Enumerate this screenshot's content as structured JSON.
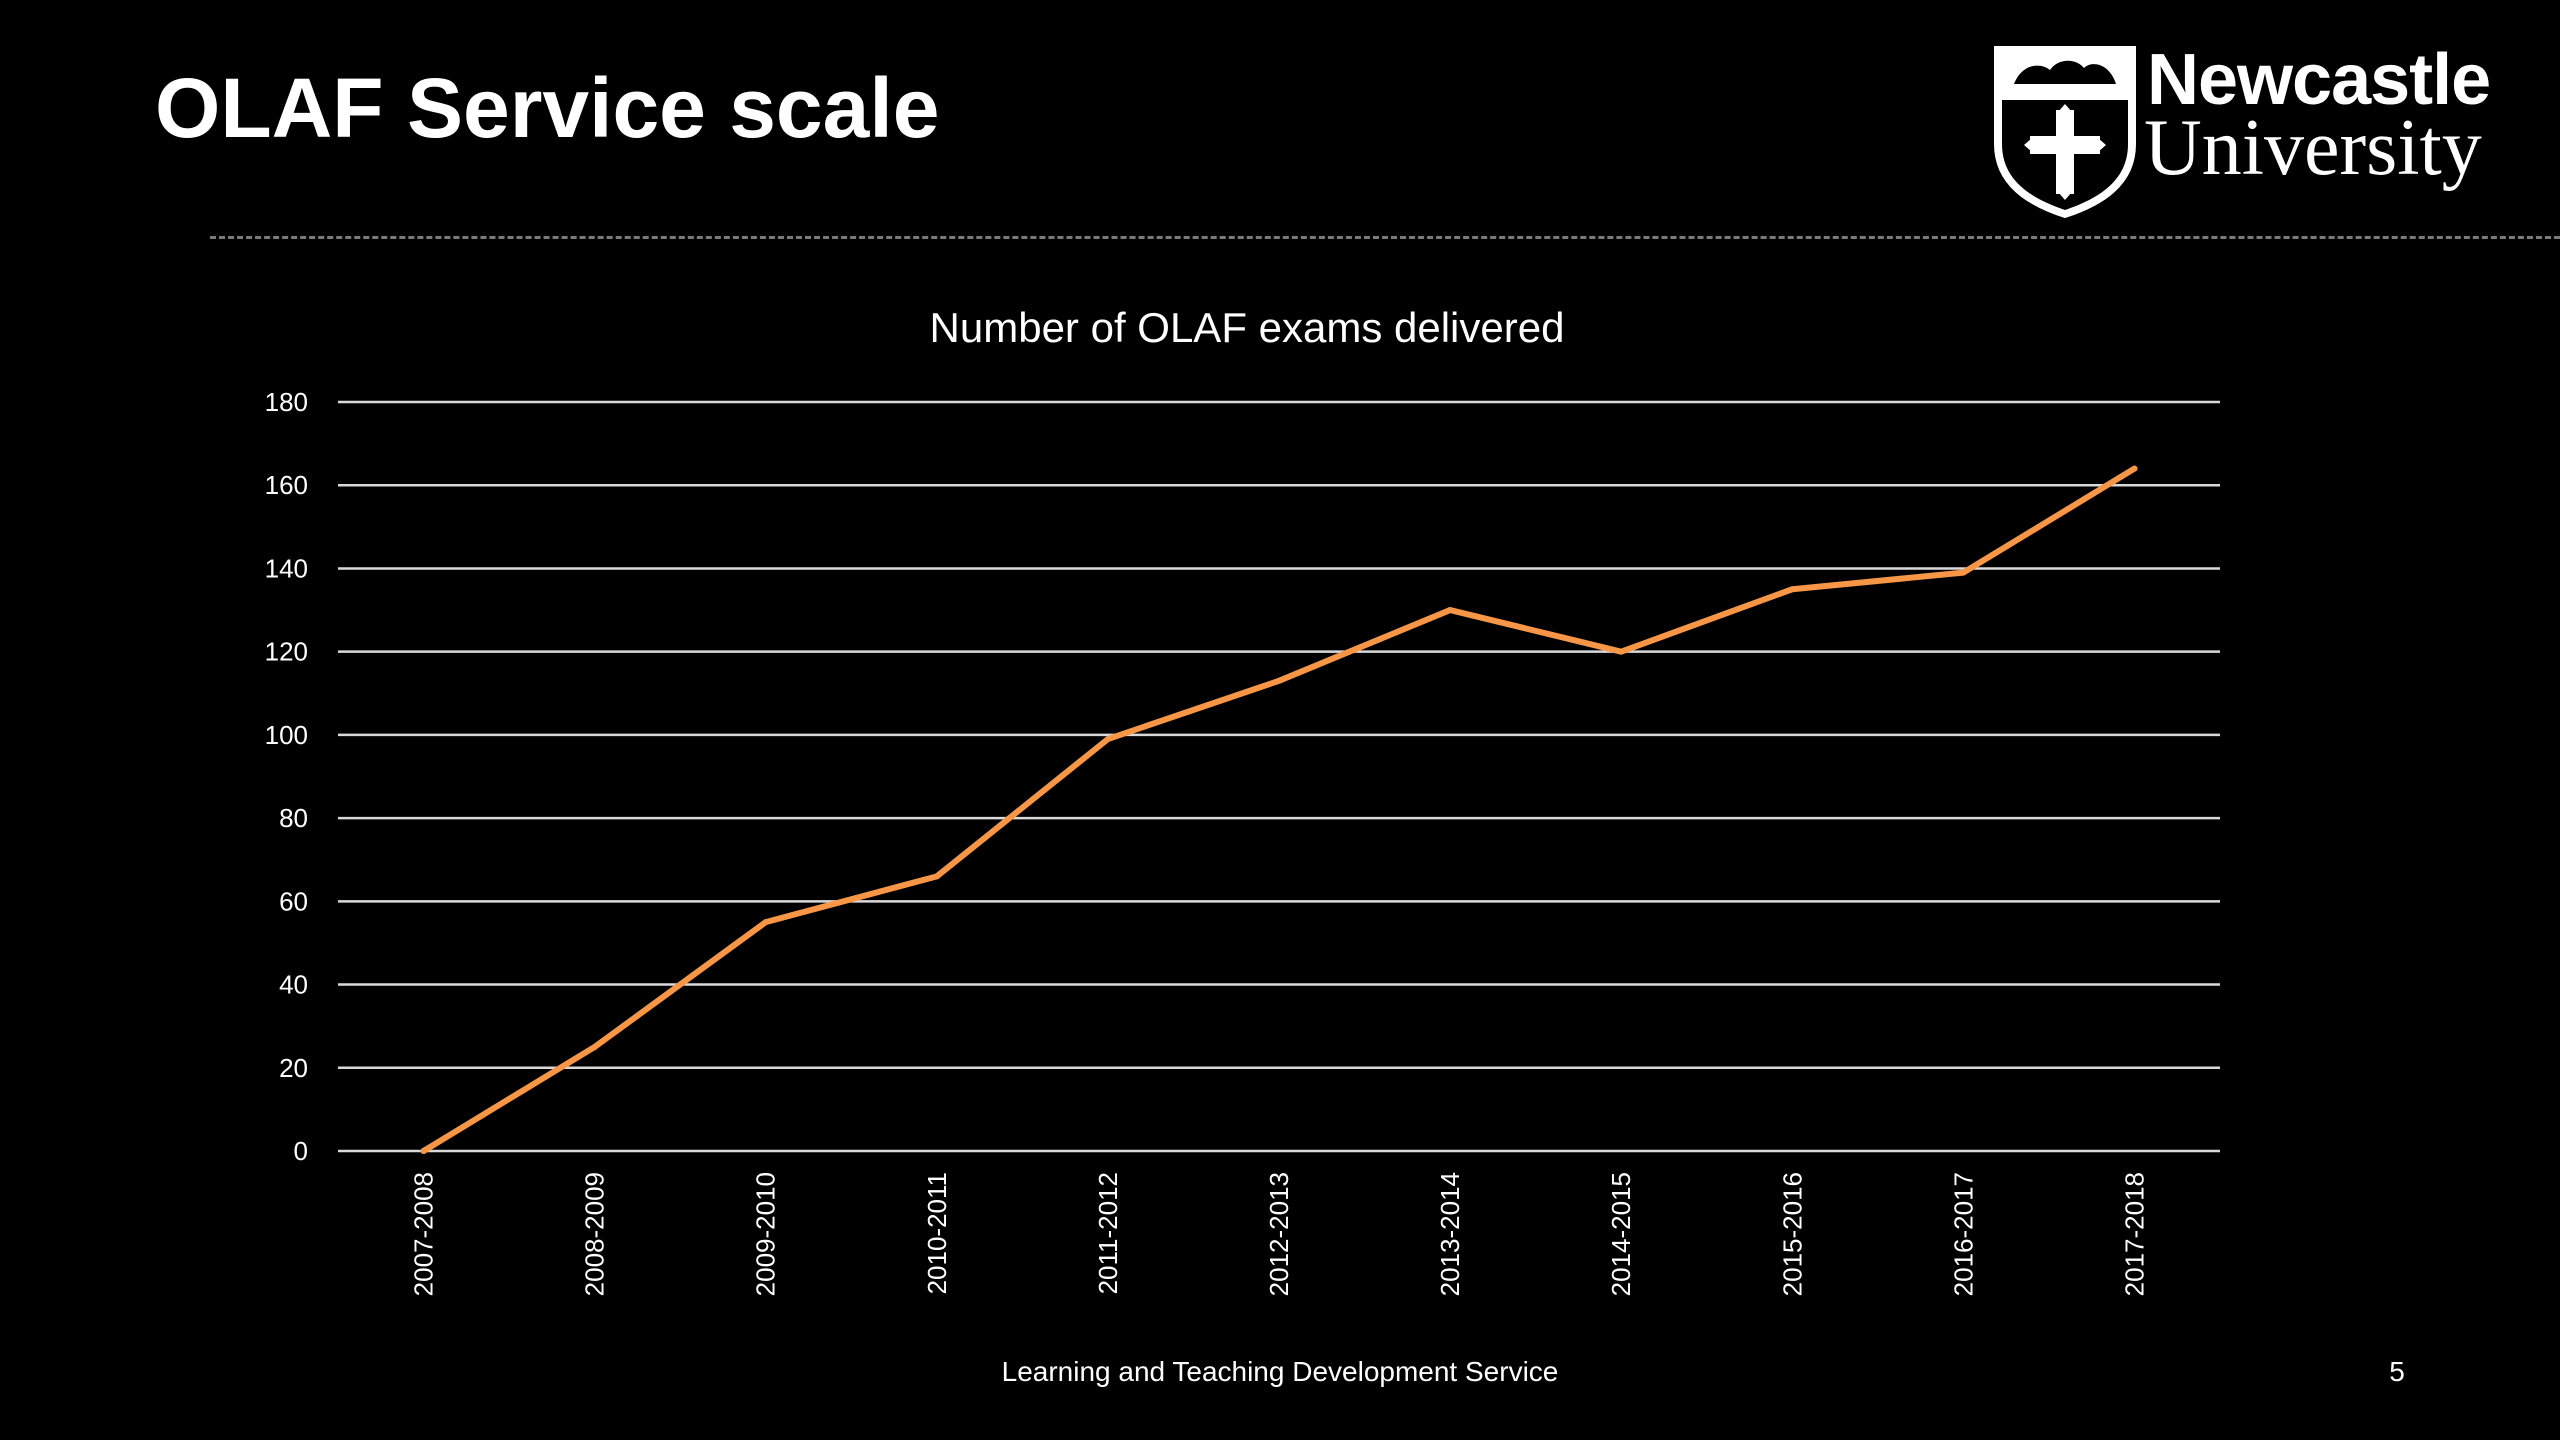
{
  "slide": {
    "title": "OLAF Service scale",
    "footer": "Learning and Teaching Development Service",
    "page_number": "5"
  },
  "logo": {
    "line1": "Newcastle",
    "line2": "University",
    "icon": "university-crest-icon"
  },
  "colors": {
    "background": "#000000",
    "text": "#ffffff",
    "gridline": "#d9d9d9",
    "series": "#f79646"
  },
  "chart_data": {
    "type": "line",
    "title": "Number of OLAF exams delivered",
    "xlabel": "",
    "ylabel": "",
    "categories": [
      "2007-2008",
      "2008-2009",
      "2009-2010",
      "2010-2011",
      "2011-2012",
      "2012-2013",
      "2013-2014",
      "2014-2015",
      "2015-2016",
      "2016-2017",
      "2017-2018"
    ],
    "values": [
      0,
      25,
      55,
      66,
      99,
      113,
      130,
      120,
      135,
      139,
      164
    ],
    "ylim": [
      0,
      180
    ],
    "yticks": [
      0,
      20,
      40,
      60,
      80,
      100,
      120,
      140,
      160,
      180
    ],
    "grid": true,
    "legend": "none"
  }
}
